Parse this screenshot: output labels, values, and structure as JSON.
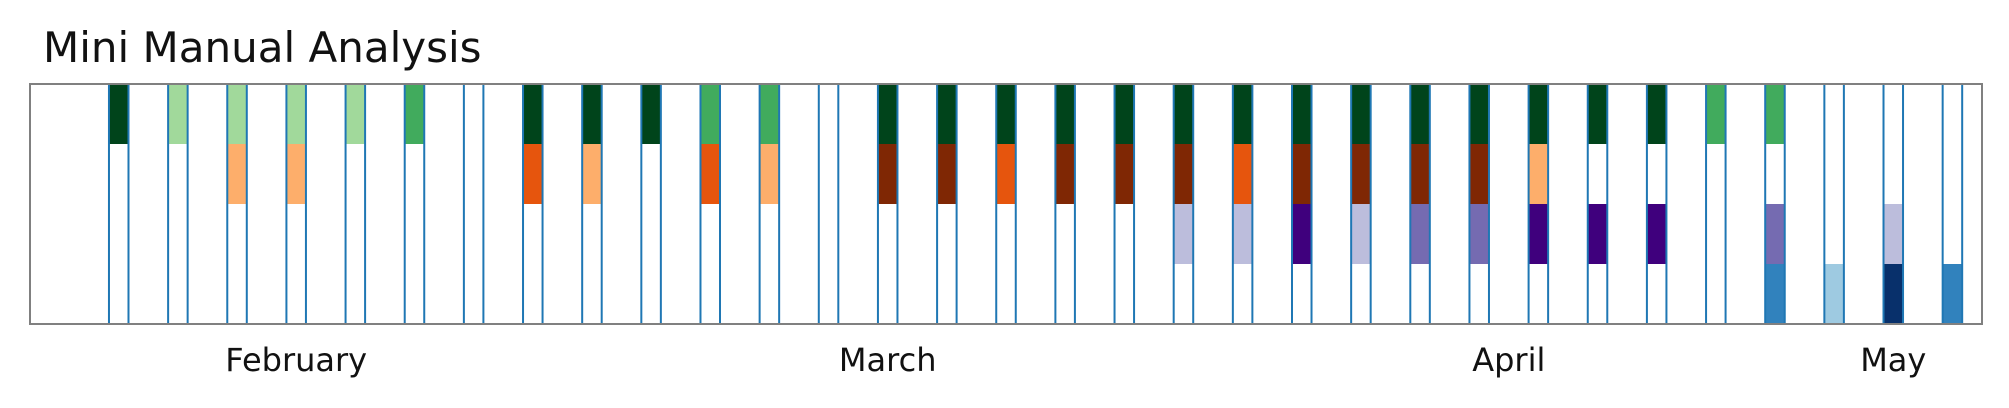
{
  "chart_data": {
    "type": "heatmap",
    "title": "Mini Manual Analysis",
    "xlabel": "",
    "ylabel": "",
    "x_axis_labels": [
      "February",
      "March",
      "April",
      "May"
    ],
    "x_axis_label_columns": [
      4,
      14,
      24.5,
      31
    ],
    "grid": "vertical separators on marked days",
    "columns": [
      {
        "rows": [
          "#ffffff",
          "#ffffff",
          "#ffffff",
          "#ffffff"
        ],
        "outlined": false
      },
      {
        "rows": [
          "#00441b",
          "#ffffff",
          "#ffffff",
          "#ffffff"
        ],
        "outlined": true
      },
      {
        "rows": [
          "#a1d99b",
          "#ffffff",
          "#ffffff",
          "#ffffff"
        ],
        "outlined": true
      },
      {
        "rows": [
          "#a1d99b",
          "#fdae6b",
          "#ffffff",
          "#ffffff"
        ],
        "outlined": true
      },
      {
        "rows": [
          "#a1d99b",
          "#fdae6b",
          "#ffffff",
          "#ffffff"
        ],
        "outlined": true
      },
      {
        "rows": [
          "#a1d99b",
          "#ffffff",
          "#ffffff",
          "#ffffff"
        ],
        "outlined": true
      },
      {
        "rows": [
          "#41ab5d",
          "#ffffff",
          "#ffffff",
          "#ffffff"
        ],
        "outlined": true
      },
      {
        "rows": [
          "#ffffff",
          "#ffffff",
          "#ffffff",
          "#ffffff"
        ],
        "outlined": true
      },
      {
        "rows": [
          "#00441b",
          "#e6550d",
          "#ffffff",
          "#ffffff"
        ],
        "outlined": true
      },
      {
        "rows": [
          "#00441b",
          "#fdae6b",
          "#ffffff",
          "#ffffff"
        ],
        "outlined": true
      },
      {
        "rows": [
          "#00441b",
          "#ffffff",
          "#ffffff",
          "#ffffff"
        ],
        "outlined": true
      },
      {
        "rows": [
          "#41ab5d",
          "#e6550d",
          "#ffffff",
          "#ffffff"
        ],
        "outlined": true
      },
      {
        "rows": [
          "#41ab5d",
          "#fdae6b",
          "#ffffff",
          "#ffffff"
        ],
        "outlined": true
      },
      {
        "rows": [
          "#ffffff",
          "#ffffff",
          "#ffffff",
          "#ffffff"
        ],
        "outlined": true
      },
      {
        "rows": [
          "#00441b",
          "#7f2704",
          "#ffffff",
          "#ffffff"
        ],
        "outlined": true
      },
      {
        "rows": [
          "#00441b",
          "#7f2704",
          "#ffffff",
          "#ffffff"
        ],
        "outlined": true
      },
      {
        "rows": [
          "#00441b",
          "#e6550d",
          "#ffffff",
          "#ffffff"
        ],
        "outlined": true
      },
      {
        "rows": [
          "#00441b",
          "#7f2704",
          "#ffffff",
          "#ffffff"
        ],
        "outlined": true
      },
      {
        "rows": [
          "#00441b",
          "#7f2704",
          "#ffffff",
          "#ffffff"
        ],
        "outlined": true
      },
      {
        "rows": [
          "#00441b",
          "#7f2704",
          "#bcbddc",
          "#ffffff"
        ],
        "outlined": true
      },
      {
        "rows": [
          "#00441b",
          "#e6550d",
          "#bcbddc",
          "#ffffff"
        ],
        "outlined": true
      },
      {
        "rows": [
          "#00441b",
          "#7f2704",
          "#3f007d",
          "#ffffff"
        ],
        "outlined": true
      },
      {
        "rows": [
          "#00441b",
          "#7f2704",
          "#bcbddc",
          "#ffffff"
        ],
        "outlined": true
      },
      {
        "rows": [
          "#00441b",
          "#7f2704",
          "#756bb1",
          "#ffffff"
        ],
        "outlined": true
      },
      {
        "rows": [
          "#00441b",
          "#7f2704",
          "#756bb1",
          "#ffffff"
        ],
        "outlined": true
      },
      {
        "rows": [
          "#00441b",
          "#fdae6b",
          "#3f007d",
          "#ffffff"
        ],
        "outlined": true
      },
      {
        "rows": [
          "#00441b",
          "#ffffff",
          "#3f007d",
          "#ffffff"
        ],
        "outlined": true
      },
      {
        "rows": [
          "#00441b",
          "#ffffff",
          "#3f007d",
          "#ffffff"
        ],
        "outlined": true
      },
      {
        "rows": [
          "#41ab5d",
          "#ffffff",
          "#ffffff",
          "#ffffff"
        ],
        "outlined": true
      },
      {
        "rows": [
          "#41ab5d",
          "#ffffff",
          "#756bb1",
          "#3182bd"
        ],
        "outlined": true
      },
      {
        "rows": [
          "#ffffff",
          "#ffffff",
          "#ffffff",
          "#9ecae1"
        ],
        "outlined": true
      },
      {
        "rows": [
          "#ffffff",
          "#ffffff",
          "#bcbddc",
          "#08306b"
        ],
        "outlined": true
      },
      {
        "rows": [
          "#ffffff",
          "#ffffff",
          "#ffffff",
          "#3182bd"
        ],
        "outlined": true
      }
    ],
    "colors": {
      "outline": "#1f77b4",
      "frame": "#808080",
      "background": "#ffffff"
    }
  }
}
